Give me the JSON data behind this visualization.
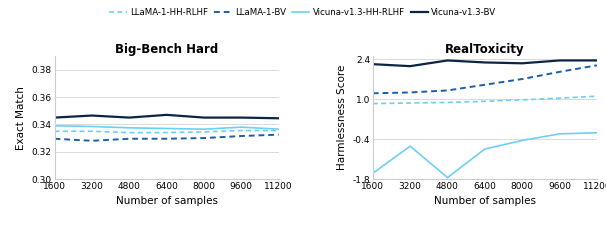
{
  "x": [
    1600,
    3200,
    4800,
    6400,
    8000,
    9600,
    11200
  ],
  "bbh": {
    "llama_hh_rlhf": [
      0.335,
      0.335,
      0.334,
      0.334,
      0.3345,
      0.3355,
      0.3355
    ],
    "llama_bv": [
      0.3295,
      0.328,
      0.3295,
      0.3295,
      0.33,
      0.3315,
      0.3325
    ],
    "vicuna_hh_rlhf": [
      0.339,
      0.3385,
      0.3375,
      0.337,
      0.3365,
      0.338,
      0.3365
    ],
    "vicuna_bv": [
      0.345,
      0.3465,
      0.345,
      0.347,
      0.345,
      0.345,
      0.3445
    ]
  },
  "rt": {
    "llama_hh_rlhf": [
      0.84,
      0.86,
      0.88,
      0.92,
      0.97,
      1.03,
      1.1
    ],
    "llama_bv": [
      1.2,
      1.23,
      1.3,
      1.5,
      1.7,
      1.95,
      2.18
    ],
    "vicuna_hh_rlhf": [
      -1.6,
      -0.65,
      -1.75,
      -0.75,
      -0.45,
      -0.22,
      -0.18
    ],
    "vicuna_bv": [
      2.22,
      2.15,
      2.35,
      2.28,
      2.25,
      2.35,
      2.35
    ]
  },
  "colors": {
    "llama_hh_rlhf": "#6dcff6",
    "llama_bv": "#1a5fa8",
    "vicuna_hh_rlhf": "#6dcff6",
    "vicuna_bv": "#0d2545"
  },
  "bbh_ylim": [
    0.3,
    0.39
  ],
  "bbh_yticks": [
    0.3,
    0.32,
    0.34,
    0.36,
    0.38
  ],
  "rt_ylim": [
    -1.8,
    2.5
  ],
  "rt_yticks": [
    -1.8,
    -0.4,
    1.0,
    2.4
  ],
  "xlabel": "Number of samples",
  "bbh_ylabel": "Exact Match",
  "rt_ylabel": "Harmlessness Score",
  "bbh_title": "Big-Bench Hard",
  "rt_title": "RealToxicity",
  "legend_labels": [
    "LLaMA-1-HH-RLHF",
    "LLaMA-1-BV",
    "Vicuna-v1.3-HH-RLHF",
    "Vicuna-v1.3-BV"
  ],
  "xticks": [
    1600,
    3200,
    4800,
    6400,
    8000,
    9600,
    11200
  ]
}
